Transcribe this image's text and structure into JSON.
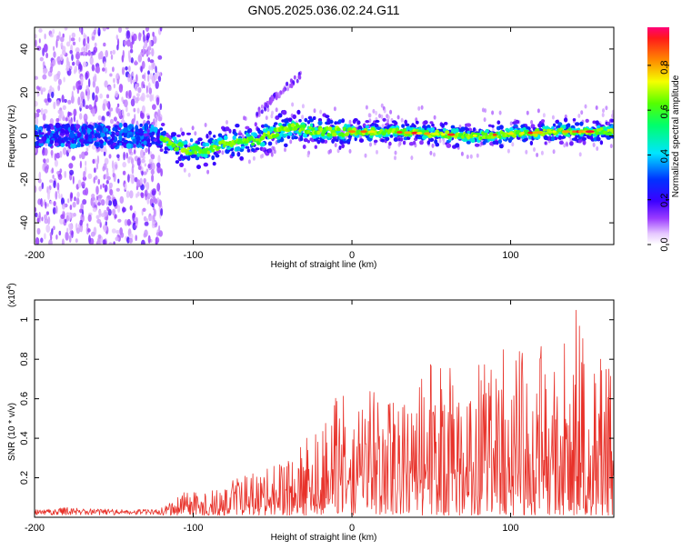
{
  "title": "GN05.2025.036.02.24.G11",
  "spectrogram": {
    "chart_data": {
      "type": "heatmap",
      "xlabel": "Height of straight line (km)",
      "ylabel": "Frequency (Hz)",
      "xlim": [
        -200,
        165
      ],
      "ylim": [
        -50,
        50
      ],
      "x_ticks": [
        "-200",
        "-100",
        "0",
        "100"
      ],
      "y_ticks": [
        "40",
        "20",
        "0",
        "-20",
        "-40"
      ],
      "ridge": [
        {
          "x": -120,
          "y": -1
        },
        {
          "x": -110,
          "y": -5
        },
        {
          "x": -100,
          "y": -7
        },
        {
          "x": -90,
          "y": -6
        },
        {
          "x": -80,
          "y": -4
        },
        {
          "x": -70,
          "y": -3
        },
        {
          "x": -60,
          "y": -2
        },
        {
          "x": -50,
          "y": 1
        },
        {
          "x": -40,
          "y": 4
        },
        {
          "x": -30,
          "y": 3
        },
        {
          "x": -20,
          "y": 2
        },
        {
          "x": 0,
          "y": 2
        },
        {
          "x": 20,
          "y": 2
        },
        {
          "x": 50,
          "y": 1
        },
        {
          "x": 80,
          "y": 0
        },
        {
          "x": 100,
          "y": 1
        },
        {
          "x": 130,
          "y": 2
        },
        {
          "x": 165,
          "y": 2
        }
      ],
      "harmonic_branch": [
        {
          "x": -60,
          "y": 10
        },
        {
          "x": -45,
          "y": 20
        },
        {
          "x": -32,
          "y": 28
        }
      ],
      "colorbar": {
        "label": "Normalized spectral amplitude",
        "ticks": [
          "0.0",
          "0.2",
          "0.4",
          "0.6",
          "0.8"
        ],
        "range": [
          0,
          0.97
        ]
      }
    }
  },
  "snr": {
    "chart_data": {
      "type": "line",
      "xlabel": "Height of straight line (km)",
      "ylabel": "SNR (10 * v/v)",
      "scale_label": "(x10",
      "scale_exp": "4",
      "scale_close": ")",
      "xlim": [
        -200,
        165
      ],
      "ylim": [
        0,
        1.1
      ],
      "x_ticks": [
        "-200",
        "-100",
        "0",
        "100"
      ],
      "y_ticks": [
        "0.2",
        "0.4",
        "0.6",
        "0.8",
        "1"
      ],
      "series": [
        {
          "color": "#e8322a",
          "envelope": [
            {
              "x": -200,
              "y": 0.04
            },
            {
              "x": -180,
              "y": 0.05
            },
            {
              "x": -150,
              "y": 0.04
            },
            {
              "x": -120,
              "y": 0.04
            },
            {
              "x": -105,
              "y": 0.12
            },
            {
              "x": -90,
              "y": 0.12
            },
            {
              "x": -75,
              "y": 0.18
            },
            {
              "x": -60,
              "y": 0.22
            },
            {
              "x": -40,
              "y": 0.28
            },
            {
              "x": -25,
              "y": 0.45
            },
            {
              "x": -10,
              "y": 0.6
            },
            {
              "x": 10,
              "y": 0.65
            },
            {
              "x": 30,
              "y": 0.55
            },
            {
              "x": 50,
              "y": 0.78
            },
            {
              "x": 70,
              "y": 0.8
            },
            {
              "x": 90,
              "y": 0.85
            },
            {
              "x": 110,
              "y": 0.9
            },
            {
              "x": 130,
              "y": 0.95
            },
            {
              "x": 140,
              "y": 1.1
            },
            {
              "x": 155,
              "y": 0.9
            },
            {
              "x": 165,
              "y": 0.7
            }
          ]
        }
      ]
    }
  },
  "colors": {
    "snr_line": "#e8322a",
    "frame": "#000000",
    "background": "#ffffff"
  }
}
